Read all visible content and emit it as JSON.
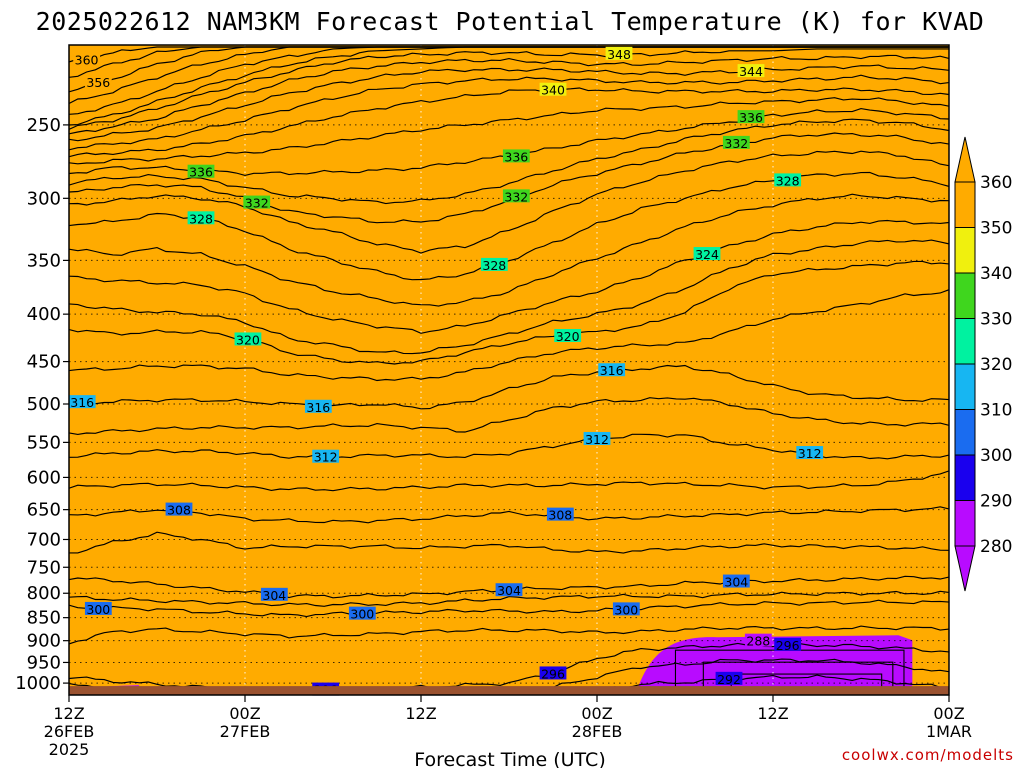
{
  "title": "2025022612 NAM3KM Forecast Potential Temperature (K) for KVAD",
  "credit": "coolwx.com/modelts",
  "colors": {
    "ground": "#9a5230",
    "band_280_290": "#b80bff",
    "band_290_300": "#1a00ee",
    "band_300_310": "#1a6cf0",
    "band_310_320": "#17b6f2",
    "band_320_330": "#00f2a0",
    "band_330_340": "#3fd61e",
    "band_340_350": "#f0f00e",
    "band_350_360": "#ffab00",
    "credit": "#c80000"
  },
  "chart_data": {
    "type": "heatmap",
    "title": "2025022612 NAM3KM Forecast Potential Temperature (K) for KVAD",
    "xlabel": "Forecast Time (UTC)",
    "ylabel": "",
    "x_ticks": [
      {
        "hour": 0,
        "lines": [
          "12Z",
          "26FEB",
          "2025"
        ]
      },
      {
        "hour": 12,
        "lines": [
          "00Z",
          "27FEB"
        ]
      },
      {
        "hour": 24,
        "lines": [
          "12Z"
        ]
      },
      {
        "hour": 36,
        "lines": [
          "00Z",
          "28FEB"
        ]
      },
      {
        "hour": 48,
        "lines": [
          "12Z"
        ]
      },
      {
        "hour": 60,
        "lines": [
          "00Z",
          "1MAR"
        ]
      }
    ],
    "xlim": [
      0,
      60
    ],
    "y_scale": "log-pressure",
    "y_ticks": [
      250,
      300,
      350,
      400,
      450,
      500,
      550,
      600,
      650,
      700,
      750,
      800,
      850,
      900,
      950,
      1000
    ],
    "ylim_hpa": [
      1030,
      205
    ],
    "surface_hpa": 1000,
    "colorbar": {
      "levels": [
        280,
        290,
        300,
        310,
        320,
        330,
        340,
        350,
        360
      ],
      "colors": [
        "#b80bff",
        "#1a00ee",
        "#1a6cf0",
        "#17b6f2",
        "#00f2a0",
        "#3fd61e",
        "#f0f00e",
        "#ffab00"
      ]
    },
    "contour_interval_k": 2,
    "time_hours": [
      0,
      3,
      6,
      9,
      12,
      15,
      18,
      21,
      24,
      27,
      30,
      33,
      36,
      39,
      42,
      45,
      48,
      51,
      54,
      57,
      60
    ],
    "isentropes_hpa": [
      {
        "theta": 290,
        "p": [
          1022,
          1022,
          1022,
          1022,
          1022,
          1022,
          1022,
          1022,
          1022,
          1022,
          1022,
          1022,
          1022,
          1022,
          1022,
          1022,
          1022,
          1022,
          1022,
          1022,
          1022
        ]
      },
      {
        "theta": 292,
        "p": [
          1015,
          1022,
          1022,
          1022,
          1022,
          1022,
          1022,
          1022,
          1022,
          1022,
          1022,
          1022,
          1018,
          1003,
          998,
          990,
          985,
          985,
          990,
          1000,
          1012
        ]
      },
      {
        "theta": 294,
        "p": [
          1005,
          1012,
          1020,
          1022,
          1022,
          1022,
          1022,
          1022,
          1022,
          1022,
          1022,
          1010,
          985,
          960,
          955,
          945,
          945,
          945,
          950,
          960,
          975
        ]
      },
      {
        "theta": 296,
        "p": [
          985,
          995,
          1003,
          1010,
          1012,
          1015,
          1015,
          1013,
          1010,
          1005,
          1000,
          975,
          940,
          920,
          915,
          910,
          910,
          910,
          912,
          918,
          925
        ]
      },
      {
        "theta": 298,
        "p": [
          905,
          880,
          875,
          880,
          885,
          890,
          888,
          885,
          880,
          877,
          877,
          878,
          882,
          880,
          875,
          872,
          872,
          873,
          872,
          872,
          873
        ]
      },
      {
        "theta": 300,
        "p": [
          828,
          830,
          832,
          838,
          842,
          845,
          842,
          840,
          838,
          835,
          836,
          838,
          835,
          830,
          826,
          822,
          820,
          820,
          818,
          818,
          818
        ]
      },
      {
        "theta": 302,
        "p": [
          808,
          812,
          815,
          818,
          820,
          823,
          823,
          822,
          820,
          815,
          810,
          808,
          806,
          806,
          806,
          803,
          802,
          801,
          800,
          800,
          799
        ]
      },
      {
        "theta": 304,
        "p": [
          770,
          775,
          782,
          790,
          797,
          805,
          806,
          804,
          802,
          797,
          793,
          790,
          788,
          786,
          780,
          778,
          776,
          774,
          772,
          770,
          769
        ]
      },
      {
        "theta": 306,
        "p": [
          725,
          705,
          690,
          700,
          715,
          712,
          712,
          712,
          715,
          712,
          710,
          718,
          722,
          720,
          715,
          712,
          710,
          712,
          713,
          715,
          718
        ]
      },
      {
        "theta": 308,
        "p": [
          660,
          655,
          650,
          655,
          665,
          668,
          670,
          668,
          665,
          660,
          655,
          660,
          665,
          663,
          660,
          658,
          655,
          654,
          652,
          650,
          648
        ]
      },
      {
        "theta": 310,
        "p": [
          615,
          612,
          610,
          612,
          615,
          618,
          618,
          617,
          615,
          612,
          612,
          612,
          610,
          608,
          610,
          612,
          615,
          614,
          612,
          605,
          592
        ]
      },
      {
        "theta": 312,
        "p": [
          570,
          565,
          562,
          562,
          565,
          570,
          570,
          568,
          568,
          570,
          565,
          555,
          545,
          540,
          540,
          552,
          560,
          568,
          572,
          570,
          568
        ]
      },
      {
        "theta": 314,
        "p": [
          538,
          535,
          532,
          530,
          530,
          530,
          528,
          527,
          530,
          535,
          520,
          505,
          497,
          495,
          492,
          500,
          512,
          520,
          525,
          526,
          525
        ]
      },
      {
        "theta": 316,
        "p": [
          500,
          497,
          495,
          495,
          497,
          500,
          502,
          500,
          505,
          498,
          482,
          468,
          462,
          458,
          455,
          465,
          478,
          488,
          492,
          495,
          495
        ]
      },
      {
        "theta": 318,
        "p": [
          460,
          458,
          455,
          455,
          458,
          465,
          468,
          470,
          470,
          462,
          450,
          440,
          435,
          432,
          430,
          418,
          405,
          397,
          390,
          382,
          378
        ]
      },
      {
        "theta": 320,
        "p": [
          415,
          420,
          418,
          418,
          425,
          440,
          448,
          452,
          450,
          440,
          430,
          422,
          418,
          412,
          398,
          375,
          362,
          358,
          355,
          352,
          352
        ]
      },
      {
        "theta": 322,
        "p": [
          390,
          395,
          398,
          400,
          408,
          425,
          432,
          440,
          440,
          432,
          420,
          408,
          400,
          390,
          375,
          357,
          345,
          340,
          335,
          333,
          335
        ]
      },
      {
        "theta": 324,
        "p": [
          365,
          368,
          370,
          372,
          380,
          395,
          405,
          412,
          418,
          412,
          400,
          388,
          378,
          365,
          350,
          338,
          328,
          322,
          318,
          318,
          320
        ]
      },
      {
        "theta": 326,
        "p": [
          340,
          345,
          340,
          345,
          355,
          368,
          378,
          385,
          392,
          388,
          378,
          362,
          348,
          335,
          322,
          312,
          305,
          300,
          298,
          300,
          302
        ]
      },
      {
        "theta": 328,
        "p": [
          320,
          318,
          312,
          315,
          325,
          340,
          350,
          360,
          368,
          362,
          350,
          335,
          320,
          308,
          300,
          292,
          287,
          283,
          282,
          285,
          290
        ]
      },
      {
        "theta": 330,
        "p": [
          305,
          302,
          298,
          300,
          306,
          318,
          326,
          336,
          342,
          338,
          325,
          310,
          297,
          288,
          280,
          274,
          270,
          268,
          267,
          270,
          277
        ]
      },
      {
        "theta": 332,
        "p": [
          296,
          292,
          290,
          292,
          300,
          310,
          314,
          318,
          318,
          312,
          302,
          290,
          282,
          275,
          268,
          263,
          258,
          256,
          256,
          258,
          263
        ]
      },
      {
        "theta": 334,
        "p": [
          289,
          285,
          284,
          286,
          292,
          298,
          300,
          303,
          302,
          297,
          289,
          280,
          272,
          266,
          259,
          254,
          250,
          248,
          247,
          249,
          253
        ]
      },
      {
        "theta": 336,
        "p": [
          282,
          278,
          278,
          280,
          282,
          282,
          281,
          280,
          278,
          274,
          270,
          265,
          260,
          256,
          252,
          248,
          244,
          242,
          241,
          243,
          246
        ]
      },
      {
        "theta": 338,
        "p": [
          276,
          273,
          272,
          270,
          268,
          265,
          261,
          257,
          253,
          250,
          247,
          244,
          241,
          240,
          239,
          237,
          236,
          235,
          234,
          236,
          239
        ]
      },
      {
        "theta": 340,
        "p": [
          270,
          268,
          266,
          262,
          257,
          251,
          245,
          240,
          236,
          233,
          230,
          229,
          229,
          230,
          230,
          230,
          230,
          229,
          229,
          230,
          232
        ]
      },
      {
        "theta": 342,
        "p": [
          265,
          262,
          259,
          253,
          247,
          240,
          234,
          229,
          226,
          224,
          223,
          223,
          224,
          225,
          225,
          225,
          224,
          223,
          222,
          223,
          225
        ]
      },
      {
        "theta": 344,
        "p": [
          260,
          256,
          252,
          245,
          238,
          231,
          226,
          222,
          219,
          218,
          218,
          218,
          219,
          220,
          220,
          219,
          218,
          217,
          216,
          217,
          218
        ]
      },
      {
        "theta": 346,
        "p": [
          256,
          251,
          246,
          238,
          231,
          224,
          219,
          216,
          214,
          213,
          213,
          214,
          215,
          215,
          214,
          213,
          212,
          212,
          211,
          211,
          212
        ]
      },
      {
        "theta": 348,
        "p": [
          252,
          247,
          240,
          232,
          225,
          219,
          214,
          211,
          210,
          209,
          209,
          210,
          210,
          210,
          209,
          208,
          208,
          207,
          207,
          207,
          207
        ]
      },
      {
        "theta": 350,
        "p": [
          250,
          244,
          236,
          228,
          221,
          215,
          211,
          208,
          207,
          206,
          206,
          206,
          206,
          206,
          206,
          206,
          206,
          206,
          206,
          206,
          206
        ]
      },
      {
        "theta": 352,
        "p": [
          244,
          238,
          230,
          222,
          215,
          211,
          207,
          206,
          206,
          206,
          206,
          206,
          206,
          206,
          206,
          206,
          206,
          206,
          206,
          206,
          206
        ]
      },
      {
        "theta": 354,
        "p": [
          237,
          230,
          222,
          215,
          210,
          206,
          206,
          206,
          206,
          206,
          206,
          206,
          206,
          206,
          206,
          206,
          206,
          206,
          206,
          206,
          206
        ]
      },
      {
        "theta": 356,
        "p": [
          230,
          223,
          215,
          209,
          206,
          206,
          206,
          206,
          206,
          206,
          206,
          206,
          206,
          206,
          206,
          206,
          206,
          206,
          206,
          206,
          206
        ]
      },
      {
        "theta": 358,
        "p": [
          222,
          215,
          209,
          206,
          206,
          206,
          206,
          206,
          206,
          206,
          206,
          206,
          206,
          206,
          206,
          206,
          206,
          206,
          206,
          206,
          206
        ]
      },
      {
        "theta": 360,
        "p": [
          214,
          209,
          206,
          206,
          206,
          206,
          206,
          206,
          206,
          206,
          206,
          206,
          206,
          206,
          206,
          206,
          206,
          206,
          206,
          206,
          206
        ]
      }
    ],
    "contour_labels": [
      {
        "text": "360",
        "theta": 360,
        "hour": 1.2
      },
      {
        "text": "356",
        "theta": 356,
        "hour": 2.0
      },
      {
        "text": "336",
        "theta": 336,
        "hour": 9.0
      },
      {
        "text": "332",
        "theta": 332,
        "hour": 12.8
      },
      {
        "text": "328",
        "theta": 328,
        "hour": 9.0
      },
      {
        "text": "348",
        "theta": 348,
        "hour": 37.5
      },
      {
        "text": "344",
        "theta": 344,
        "hour": 46.5
      },
      {
        "text": "340",
        "theta": 340,
        "hour": 33.0
      },
      {
        "text": "336",
        "theta": 336,
        "hour": 30.5
      },
      {
        "text": "336",
        "theta": 336,
        "hour": 46.5
      },
      {
        "text": "332",
        "theta": 332,
        "hour": 30.5
      },
      {
        "text": "332",
        "theta": 332,
        "hour": 45.5
      },
      {
        "text": "328",
        "theta": 328,
        "hour": 49.0
      },
      {
        "text": "328",
        "theta": 328,
        "hour": 29.0
      },
      {
        "text": "324",
        "theta": 324,
        "hour": 43.5
      },
      {
        "text": "320",
        "theta": 320,
        "hour": 12.2
      },
      {
        "text": "320",
        "theta": 320,
        "hour": 34.0
      },
      {
        "text": "316",
        "theta": 316,
        "hour": 0.9
      },
      {
        "text": "316",
        "theta": 316,
        "hour": 17.0
      },
      {
        "text": "316",
        "theta": 316,
        "hour": 37.0
      },
      {
        "text": "312",
        "theta": 312,
        "hour": 17.5
      },
      {
        "text": "312",
        "theta": 312,
        "hour": 36.0
      },
      {
        "text": "312",
        "theta": 312,
        "hour": 50.5
      },
      {
        "text": "308",
        "theta": 308,
        "hour": 7.5
      },
      {
        "text": "308",
        "theta": 308,
        "hour": 33.5
      },
      {
        "text": "304",
        "theta": 304,
        "hour": 14.0
      },
      {
        "text": "304",
        "theta": 304,
        "hour": 30.0
      },
      {
        "text": "304",
        "theta": 304,
        "hour": 45.5
      },
      {
        "text": "300",
        "theta": 300,
        "hour": 2.0
      },
      {
        "text": "300",
        "theta": 300,
        "hour": 20.0
      },
      {
        "text": "300",
        "theta": 300,
        "hour": 38.0
      },
      {
        "text": "296",
        "theta": 296,
        "hour": 17.5
      },
      {
        "text": "296",
        "theta": 296,
        "hour": 33.0
      },
      {
        "text": "296",
        "theta": 296,
        "hour": 49.0
      },
      {
        "text": "292",
        "theta": 292,
        "hour": 45.0
      },
      {
        "text": "288",
        "theta": 288,
        "hour": 47.0
      }
    ],
    "cold_pools": [
      {
        "name": "day-3 cold pool",
        "hours": [
          38.5,
          57.5
        ],
        "top_hpa": 888,
        "theta_inner": 286
      },
      {
        "name": "day-1 cold pool",
        "hours": [
          18.5,
          27.5
        ],
        "top_hpa": 1012,
        "theta_inner": 292
      },
      {
        "name": "start cold pool",
        "hours": [
          0,
          5
        ],
        "top_hpa": 1005,
        "theta_inner": 288
      }
    ]
  }
}
